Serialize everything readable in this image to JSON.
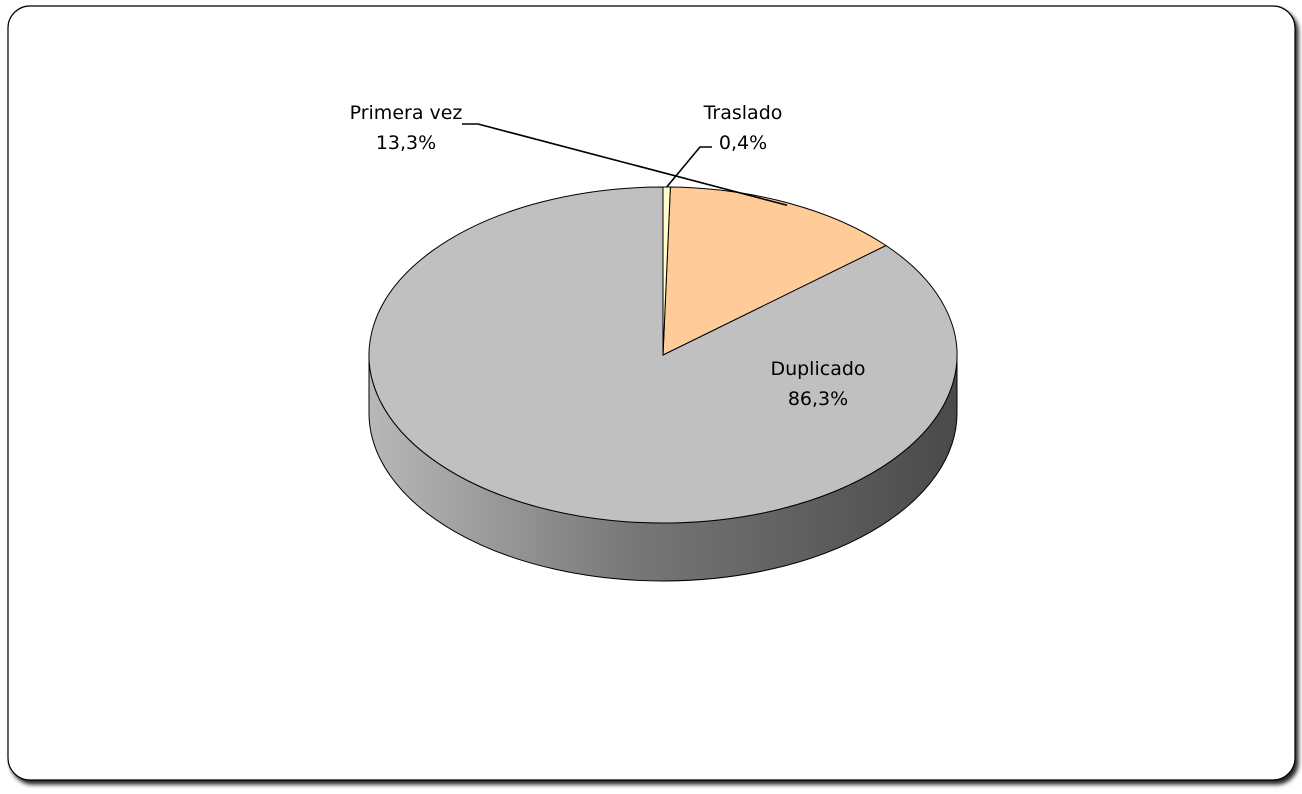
{
  "chart_data": {
    "type": "pie",
    "title": "",
    "slices": [
      {
        "name": "Duplicado",
        "value": 86.3,
        "label": "86,3%",
        "color": "#c0c0c0"
      },
      {
        "name": "Primera vez",
        "value": 13.3,
        "label": "13,3%",
        "color": "#ffcc99"
      },
      {
        "name": "Traslado",
        "value": 0.4,
        "label": "0,4%",
        "color": "#ffffcc"
      }
    ],
    "style": "3d",
    "legend": "none",
    "data_labels": "category-and-percent"
  }
}
